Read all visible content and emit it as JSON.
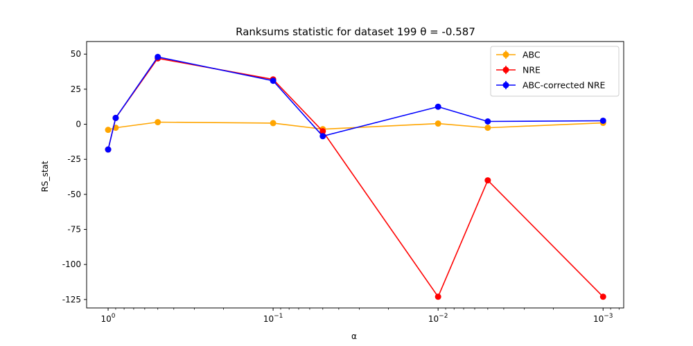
{
  "chart_data": {
    "type": "line",
    "title": "Ranksums statistic for dataset 199 θ =  -0.587",
    "xlabel": "α",
    "ylabel": "RS_stat",
    "x_scale": "log",
    "x_reversed": true,
    "xlim": [
      1.35,
      0.00075
    ],
    "ylim": [
      -131,
      59
    ],
    "x": [
      1.0,
      0.9,
      0.5,
      0.1,
      0.05,
      0.01,
      0.005,
      0.001
    ],
    "x_ticks": [
      {
        "value": 1.0,
        "label": "10^0"
      },
      {
        "value": 0.1,
        "label": "10^-1"
      },
      {
        "value": 0.01,
        "label": "10^-2"
      },
      {
        "value": 0.001,
        "label": "10^-3"
      }
    ],
    "y_ticks": [
      50,
      25,
      0,
      -25,
      -50,
      -75,
      -100,
      -125
    ],
    "grid": false,
    "legend_position": "top-right",
    "series": [
      {
        "name": "ABC",
        "color": "#FFA500",
        "values": [
          -4,
          -2.5,
          1.5,
          0.8,
          -3.5,
          0.5,
          -2.5,
          1.0
        ]
      },
      {
        "name": "NRE",
        "color": "#FF0000",
        "values": [
          -18,
          4.5,
          47,
          32,
          -5,
          -123,
          -40,
          -123
        ]
      },
      {
        "name": "ABC-corrected NRE",
        "color": "#0000FF",
        "values": [
          -18,
          4.5,
          48,
          31,
          -8.5,
          12.5,
          2,
          2.5
        ]
      }
    ]
  }
}
